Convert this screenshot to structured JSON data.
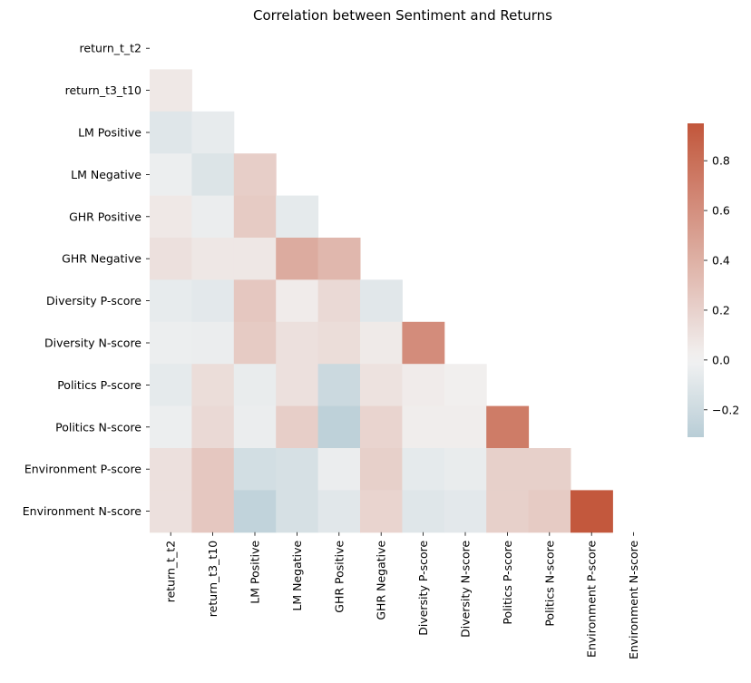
{
  "chart_data": {
    "type": "heatmap",
    "title": "Correlation between Sentiment and Returns",
    "xlabel": "",
    "ylabel": "",
    "mask": "upper-triangle-including-diagonal",
    "labels": [
      "return_t_t2",
      "return_t3_t10",
      "LM Positive",
      "LM Negative",
      "GHR Positive",
      "GHR Negative",
      "Diversity P-score",
      "Diversity N-score",
      "Politics P-score",
      "Politics N-score",
      "Environment P-score",
      "Environment N-score"
    ],
    "matrix": [
      [
        null,
        null,
        null,
        null,
        null,
        null,
        null,
        null,
        null,
        null,
        null,
        null
      ],
      [
        0.06,
        null,
        null,
        null,
        null,
        null,
        null,
        null,
        null,
        null,
        null,
        null
      ],
      [
        -0.1,
        -0.06,
        null,
        null,
        null,
        null,
        null,
        null,
        null,
        null,
        null,
        null
      ],
      [
        -0.03,
        -0.12,
        0.22,
        null,
        null,
        null,
        null,
        null,
        null,
        null,
        null,
        null
      ],
      [
        0.06,
        -0.04,
        0.24,
        -0.07,
        null,
        null,
        null,
        null,
        null,
        null,
        null,
        null
      ],
      [
        0.11,
        0.07,
        0.07,
        0.43,
        0.36,
        null,
        null,
        null,
        null,
        null,
        null,
        null
      ],
      [
        -0.06,
        -0.08,
        0.26,
        0.04,
        0.15,
        -0.09,
        null,
        null,
        null,
        null,
        null,
        null
      ],
      [
        -0.03,
        -0.04,
        0.24,
        0.11,
        0.13,
        0.05,
        0.62,
        null,
        null,
        null,
        null,
        null
      ],
      [
        -0.07,
        0.13,
        -0.05,
        0.11,
        -0.21,
        0.1,
        0.04,
        0.02,
        null,
        null,
        null,
        null
      ],
      [
        -0.03,
        0.15,
        -0.04,
        0.22,
        -0.28,
        0.18,
        0.03,
        0.03,
        0.72,
        null,
        null,
        null
      ],
      [
        0.11,
        0.26,
        -0.17,
        -0.15,
        -0.04,
        0.21,
        -0.07,
        -0.05,
        0.21,
        0.21,
        null,
        null
      ],
      [
        0.11,
        0.26,
        -0.26,
        -0.15,
        -0.09,
        0.18,
        -0.1,
        -0.08,
        0.21,
        0.24,
        0.94,
        null
      ]
    ],
    "colorbar": {
      "vmin": -0.31,
      "vmax": 0.95,
      "ticks": [
        0.8,
        0.6,
        0.4,
        0.2,
        0.0,
        -0.2
      ],
      "tick_labels": [
        "0.8",
        "0.6",
        "0.4",
        "0.2",
        "0.0",
        "−0.2"
      ],
      "colors": {
        "negative_end": "#b8cdd6",
        "center": "#f2f2f2",
        "positive_end": "#c2563b"
      }
    }
  }
}
